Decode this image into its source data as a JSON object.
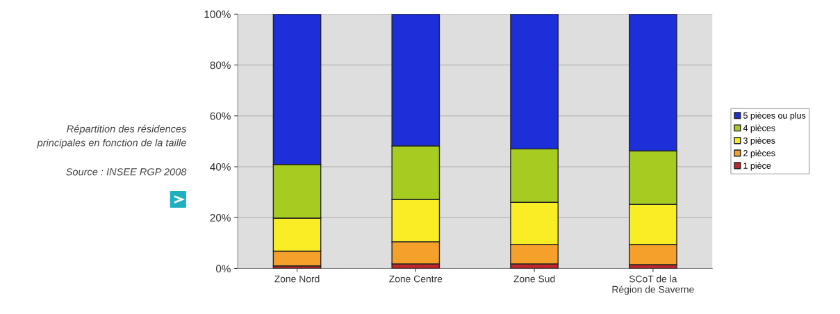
{
  "chart_data": {
    "type": "bar",
    "stacked": true,
    "categories": [
      "Zone Nord",
      "Zone Centre",
      "Zone Sud",
      "SCoT de la\nRégion de Saverne"
    ],
    "series": [
      {
        "name": "1 pièce",
        "color": "#c0272d",
        "values": [
          1.0,
          1.8,
          1.8,
          1.5
        ]
      },
      {
        "name": "2 pièces",
        "color": "#f5a02a",
        "values": [
          5.8,
          8.7,
          7.7,
          7.9
        ]
      },
      {
        "name": "3 pièces",
        "color": "#f9ee25",
        "values": [
          13.0,
          16.6,
          16.5,
          15.8
        ]
      },
      {
        "name": "4 pièces",
        "color": "#a6cc22",
        "values": [
          21.1,
          21.1,
          21.0,
          21.0
        ]
      },
      {
        "name": "5 pièces ou plus",
        "color": "#1c2fd8",
        "values": [
          59.1,
          51.8,
          53.0,
          53.8
        ]
      }
    ],
    "ylim": [
      0,
      100
    ],
    "yticks": [
      {
        "value": 0,
        "label": "0%"
      },
      {
        "value": 20,
        "label": "20%"
      },
      {
        "value": 40,
        "label": "40%"
      },
      {
        "value": 60,
        "label": "60%"
      },
      {
        "value": 80,
        "label": "80%"
      },
      {
        "value": 100,
        "label": "100%"
      }
    ],
    "grid": "y",
    "legend": "right",
    "annotations": [
      "Répartition des résidences\nprincipales en fonction de la taille",
      "Source : INSEE RGP 2008"
    ]
  }
}
